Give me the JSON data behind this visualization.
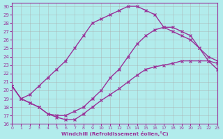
{
  "bg_color": "#b2ecec",
  "line_color": "#993399",
  "grid_color": "#aaaaaa",
  "xlabel": "Windchill (Refroidissement éolien,°C)",
  "xlim": [
    0,
    23
  ],
  "ylim": [
    16,
    30.4
  ],
  "yticks": [
    16,
    17,
    18,
    19,
    20,
    21,
    22,
    23,
    24,
    25,
    26,
    27,
    28,
    29,
    30
  ],
  "xticks": [
    0,
    1,
    2,
    3,
    4,
    5,
    6,
    7,
    8,
    9,
    10,
    11,
    12,
    13,
    14,
    15,
    16,
    17,
    18,
    19,
    20,
    21,
    22,
    23
  ],
  "line1_x": [
    0,
    1,
    2,
    3,
    4,
    5,
    6,
    7,
    8,
    9,
    10,
    11,
    12,
    13,
    14,
    15,
    16,
    17,
    18,
    19,
    20,
    21,
    22,
    23
  ],
  "line1_y": [
    20.5,
    19.0,
    19.5,
    20.5,
    21.5,
    22.5,
    23.5,
    25.0,
    26.5,
    28.0,
    28.5,
    29.0,
    29.5,
    30.0,
    30.0,
    29.5,
    29.0,
    27.5,
    27.0,
    26.5,
    26.0,
    25.0,
    24.0,
    23.5
  ],
  "line2_x": [
    0,
    1,
    2,
    3,
    4,
    5,
    6,
    7,
    8,
    9,
    10,
    11,
    12,
    13,
    14,
    15,
    16,
    17,
    18,
    19,
    20,
    21,
    22,
    23
  ],
  "line2_y": [
    20.5,
    19.0,
    18.5,
    18.0,
    17.2,
    17.0,
    17.0,
    17.5,
    18.0,
    19.0,
    20.0,
    21.5,
    22.5,
    24.0,
    25.5,
    26.5,
    27.2,
    27.5,
    27.5,
    27.0,
    26.5,
    25.0,
    23.5,
    22.5
  ],
  "line3_x": [
    0,
    1,
    2,
    3,
    4,
    5,
    6,
    7,
    8,
    9,
    10,
    11,
    12,
    13,
    14,
    15,
    16,
    17,
    18,
    19,
    20,
    21,
    22,
    23
  ],
  "line3_y": [
    20.5,
    19.0,
    18.5,
    18.0,
    17.2,
    16.8,
    16.5,
    16.5,
    17.2,
    18.0,
    18.8,
    19.5,
    20.2,
    21.0,
    21.8,
    22.5,
    22.8,
    23.0,
    23.2,
    23.5,
    23.5,
    23.5,
    23.5,
    23.2
  ]
}
